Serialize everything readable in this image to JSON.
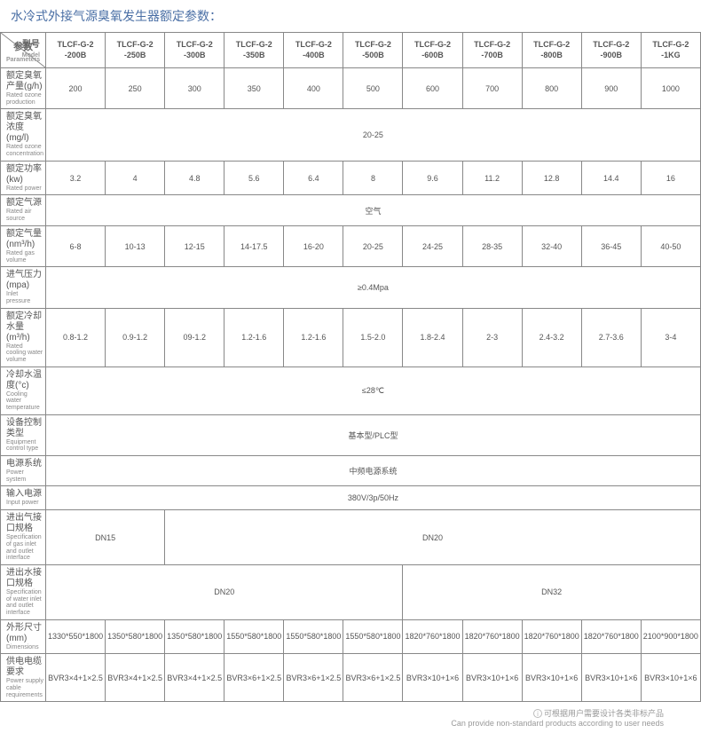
{
  "title": "水冷式外接气源臭氧发生器额定参数：",
  "header": {
    "param_label": "参数",
    "model_label": "型号",
    "param_en": "Parameters",
    "model_en": "Model"
  },
  "models": [
    "TLCF-G-2 -200B",
    "TLCF-G-2 -250B",
    "TLCF-G-2 -300B",
    "TLCF-G-2 -350B",
    "TLCF-G-2 -400B",
    "TLCF-G-2 -500B",
    "TLCF-G-2 -600B",
    "TLCF-G-2 -700B",
    "TLCF-G-2 -800B",
    "TLCF-G-2 -900B",
    "TLCF-G-2 -1KG"
  ],
  "rows": [
    {
      "cn": "额定臭氧产量(g/h)",
      "en": "Rated ozone production",
      "cells": [
        {
          "v": "200"
        },
        {
          "v": "250"
        },
        {
          "v": "300"
        },
        {
          "v": "350"
        },
        {
          "v": "400"
        },
        {
          "v": "500"
        },
        {
          "v": "600"
        },
        {
          "v": "700"
        },
        {
          "v": "800"
        },
        {
          "v": "900"
        },
        {
          "v": "1000"
        }
      ]
    },
    {
      "cn": "额定臭氧浓度(mg/l)",
      "en": "Rated ozone concentration",
      "cells": [
        {
          "v": "20-25",
          "span": 11
        }
      ]
    },
    {
      "cn": "额定功率(kw)",
      "en": "Rated power",
      "cells": [
        {
          "v": "3.2"
        },
        {
          "v": "4"
        },
        {
          "v": "4.8"
        },
        {
          "v": "5.6"
        },
        {
          "v": "6.4"
        },
        {
          "v": "8"
        },
        {
          "v": "9.6"
        },
        {
          "v": "11.2"
        },
        {
          "v": "12.8"
        },
        {
          "v": "14.4"
        },
        {
          "v": "16"
        }
      ]
    },
    {
      "cn": "额定气源",
      "en": "Rated air source",
      "cells": [
        {
          "v": "空气",
          "span": 11
        }
      ]
    },
    {
      "cn": "额定气量(nm³/h)",
      "en": "Rated gas volume",
      "cells": [
        {
          "v": "6-8"
        },
        {
          "v": "10-13"
        },
        {
          "v": "12-15"
        },
        {
          "v": "14-17.5"
        },
        {
          "v": "16-20"
        },
        {
          "v": "20-25"
        },
        {
          "v": "24-25"
        },
        {
          "v": "28-35"
        },
        {
          "v": "32-40"
        },
        {
          "v": "36-45"
        },
        {
          "v": "40-50"
        }
      ]
    },
    {
      "cn": "进气压力(mpa)",
      "en": "Inlet pressure",
      "cells": [
        {
          "v": "≥0.4Mpa",
          "span": 11
        }
      ]
    },
    {
      "cn": "额定冷却水量(m³/h)",
      "en": "Rated cooling water volume",
      "cells": [
        {
          "v": "0.8-1.2"
        },
        {
          "v": "0.9-1.2"
        },
        {
          "v": "09-1.2"
        },
        {
          "v": "1.2-1.6"
        },
        {
          "v": "1.2-1.6"
        },
        {
          "v": "1.5-2.0"
        },
        {
          "v": "1.8-2.4"
        },
        {
          "v": "2-3"
        },
        {
          "v": "2.4-3.2"
        },
        {
          "v": "2.7-3.6"
        },
        {
          "v": "3-4"
        }
      ]
    },
    {
      "cn": "冷却水温度(°c)",
      "en": "Cooling water temperature",
      "cells": [
        {
          "v": "≤28℃",
          "span": 11
        }
      ]
    },
    {
      "cn": "设备控制类型",
      "en": "Equipment control type",
      "cells": [
        {
          "v": "基本型/PLC型",
          "span": 11
        }
      ]
    },
    {
      "cn": "电源系统",
      "en": "Power system",
      "cells": [
        {
          "v": "中频电源系统",
          "span": 11
        }
      ]
    },
    {
      "cn": "输入电源",
      "en": "Input power",
      "cells": [
        {
          "v": "380V/3p/50Hz",
          "span": 11
        }
      ]
    },
    {
      "cn": "进出气接口规格",
      "en": "Specification of gas inlet and outlet interface",
      "cells": [
        {
          "v": "DN15",
          "span": 2
        },
        {
          "v": "DN20",
          "span": 9
        }
      ]
    },
    {
      "cn": "进出水接口规格",
      "en": "Specification of water inlet and outlet interface",
      "cells": [
        {
          "v": "DN20",
          "span": 6
        },
        {
          "v": "DN32",
          "span": 5
        }
      ]
    },
    {
      "cn": "外形尺寸(mm)",
      "en": "Dimensions",
      "cells": [
        {
          "v": "1330*550*1800"
        },
        {
          "v": "1350*580*1800"
        },
        {
          "v": "1350*580*1800"
        },
        {
          "v": "1550*580*1800"
        },
        {
          "v": "1550*580*1800"
        },
        {
          "v": "1550*580*1800"
        },
        {
          "v": "1820*760*1800"
        },
        {
          "v": "1820*760*1800"
        },
        {
          "v": "1820*760*1800"
        },
        {
          "v": "1820*760*1800"
        },
        {
          "v": "2100*900*1800"
        }
      ]
    },
    {
      "cn": "供电电缆要求",
      "en": "Power supply cable requirements",
      "cells": [
        {
          "v": "BVR3×4+1×2.5"
        },
        {
          "v": "BVR3×4+1×2.5"
        },
        {
          "v": "BVR3×4+1×2.5"
        },
        {
          "v": "BVR3×6+1×2.5"
        },
        {
          "v": "BVR3×6+1×2.5"
        },
        {
          "v": "BVR3×6+1×2.5"
        },
        {
          "v": "BVR3×10+1×6"
        },
        {
          "v": "BVR3×10+1×6"
        },
        {
          "v": "BVR3×10+1×6"
        },
        {
          "v": "BVR3×10+1×6"
        },
        {
          "v": "BVR3×10+1×6"
        }
      ]
    }
  ],
  "footer": {
    "cn": "可根据用户需要设计各类非标产品",
    "en": "Can provide non-standard products according to user needs"
  }
}
